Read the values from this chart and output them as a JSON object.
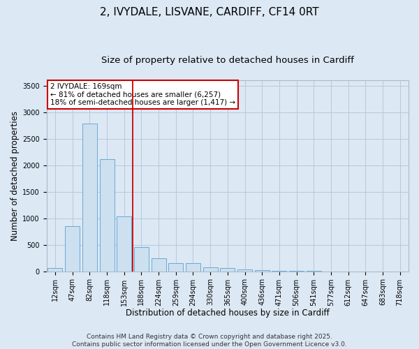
{
  "title": "2, IVYDALE, LISVANE, CARDIFF, CF14 0RT",
  "subtitle": "Size of property relative to detached houses in Cardiff",
  "xlabel": "Distribution of detached houses by size in Cardiff",
  "ylabel": "Number of detached properties",
  "categories": [
    "12sqm",
    "47sqm",
    "82sqm",
    "118sqm",
    "153sqm",
    "188sqm",
    "224sqm",
    "259sqm",
    "294sqm",
    "330sqm",
    "365sqm",
    "400sqm",
    "436sqm",
    "471sqm",
    "506sqm",
    "541sqm",
    "577sqm",
    "612sqm",
    "647sqm",
    "683sqm",
    "718sqm"
  ],
  "values": [
    60,
    850,
    2780,
    2110,
    1040,
    460,
    250,
    155,
    155,
    70,
    55,
    30,
    20,
    10,
    5,
    2,
    1,
    0,
    0,
    0,
    0
  ],
  "bar_color": "#cce0f0",
  "bar_edge_color": "#6aaad4",
  "vline_pos": 4.5,
  "vline_color": "#cc0000",
  "annotation_text": "2 IVYDALE: 169sqm\n← 81% of detached houses are smaller (6,257)\n18% of semi-detached houses are larger (1,417) →",
  "annotation_box_edgecolor": "#cc0000",
  "annotation_box_facecolor": "#ffffff",
  "ylim": [
    0,
    3600
  ],
  "yticks": [
    0,
    500,
    1000,
    1500,
    2000,
    2500,
    3000,
    3500
  ],
  "grid_color": "#b8c8dc",
  "background_color": "#dce8f4",
  "footer_line1": "Contains HM Land Registry data © Crown copyright and database right 2025.",
  "footer_line2": "Contains public sector information licensed under the Open Government Licence v3.0.",
  "title_fontsize": 11,
  "subtitle_fontsize": 9.5,
  "axis_label_fontsize": 8.5,
  "tick_fontsize": 7,
  "annotation_fontsize": 7.5,
  "footer_fontsize": 6.5
}
